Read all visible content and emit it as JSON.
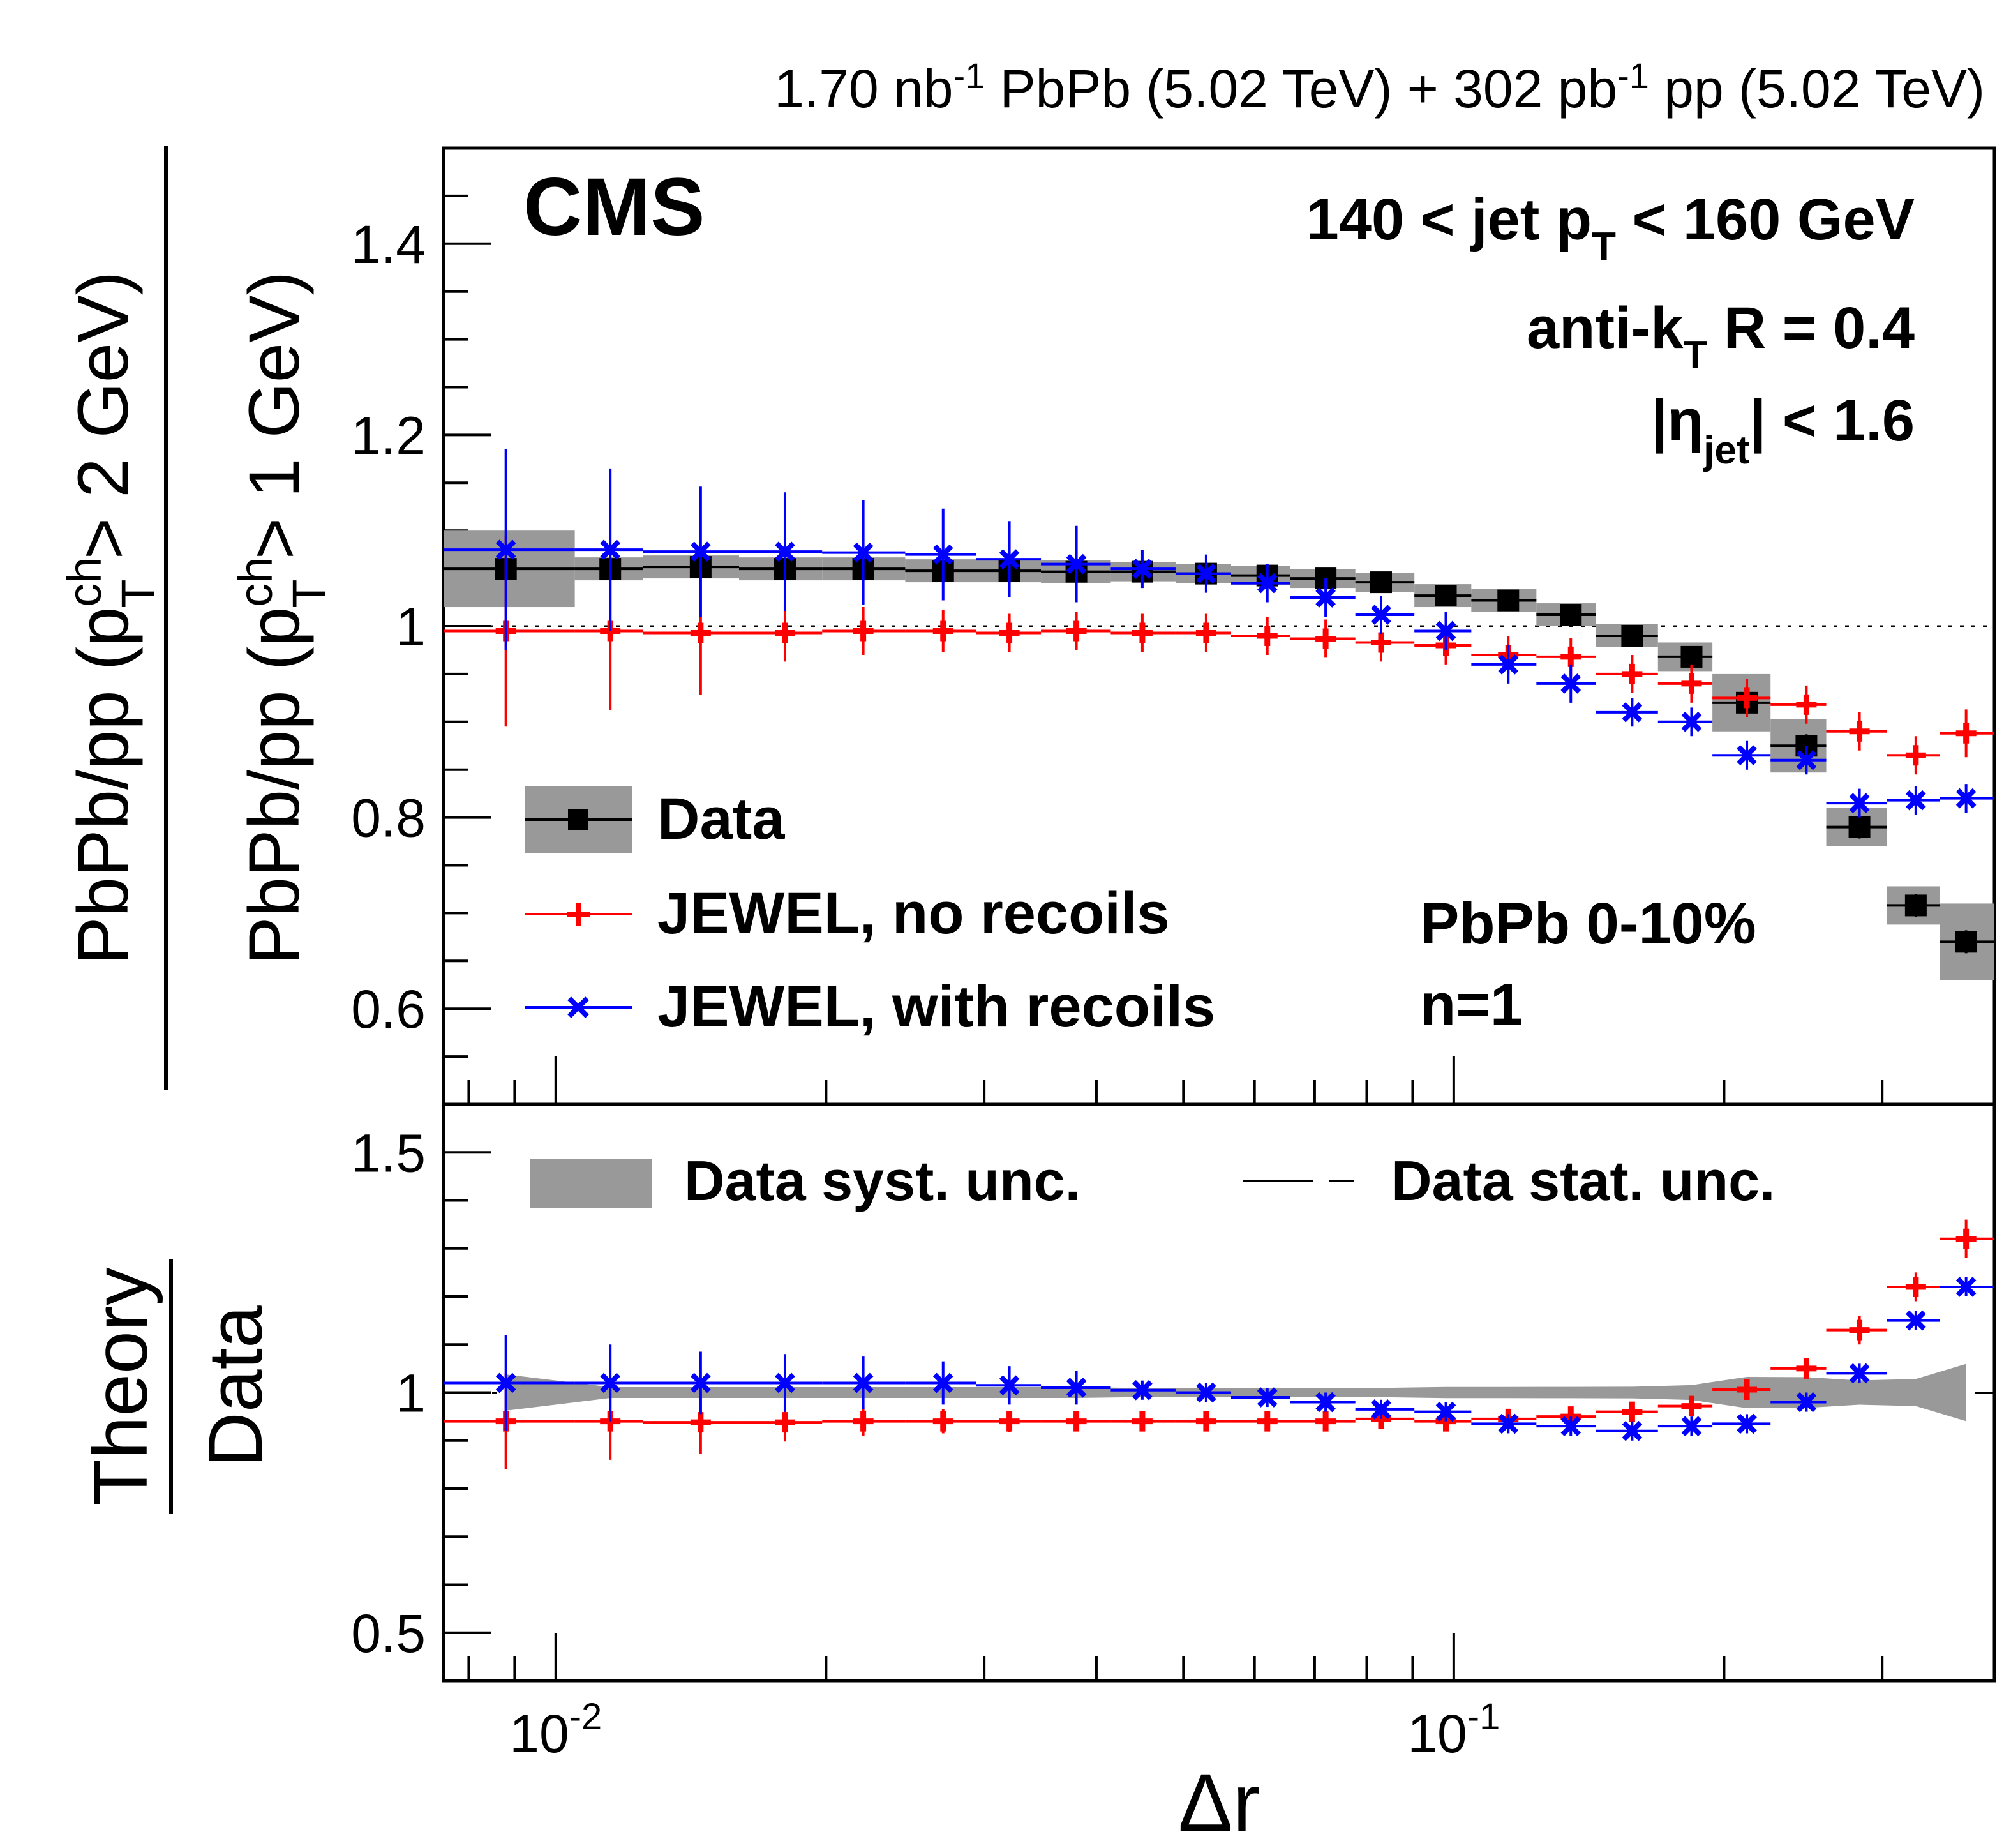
{
  "header": {
    "lumi": {
      "pbpb_value": "1.70 nb",
      "pbpb_exp": "-1",
      "pbpb_rest": " PbPb (5.02 TeV) + 302 pb",
      "pp_exp": "-1",
      "pp_rest": " pp (5.02 TeV)"
    },
    "experiment": "CMS"
  },
  "annotations": {
    "pt_range_pre": "140 < jet p",
    "pt_range_sub": "T",
    "pt_range_post": " < 160 GeV",
    "algo_pre": "anti-k",
    "algo_sub": "T",
    "algo_post": " R = 0.4",
    "eta_pre": "|η",
    "eta_sub": "jet",
    "eta_post": "| < 1.6",
    "centrality": "PbPb 0-10%",
    "n_label": "n=1"
  },
  "ylabel_top": {
    "numerator_pre": "PbPb/pp (p",
    "numerator_sup": "ch",
    "numerator_sub": "T",
    "numerator_post": " > 2 GeV)",
    "denominator_pre": "PbPb/pp (p",
    "denominator_sup": "ch",
    "denominator_sub": "T",
    "denominator_post": " > 1 GeV)"
  },
  "ylabel_bottom": {
    "numerator": "Theory",
    "denominator": "Data"
  },
  "xlabel": "Δr",
  "legend_top": [
    {
      "label": "Data",
      "color": "#000000",
      "marker": "square"
    },
    {
      "label": "JEWEL, no recoils",
      "color": "#ff0000",
      "marker": "plus"
    },
    {
      "label": "JEWEL, with recoils",
      "color": "#0000ff",
      "marker": "cross"
    }
  ],
  "legend_bottom": {
    "syst": "Data syst. unc.",
    "stat": "Data stat. unc."
  },
  "colors": {
    "data": "#000000",
    "no_recoils": "#ff0000",
    "with_recoils": "#0000ff",
    "band": "#999999"
  },
  "chart_data": [
    {
      "type": "scatter",
      "panel": "top",
      "xscale": "log",
      "xlim": [
        0.0075,
        0.4
      ],
      "ylim": [
        0.5,
        1.5
      ],
      "ticks_y": [
        "0.6",
        "0.8",
        "1",
        "1.2",
        "1.4"
      ],
      "ticks_x": [
        {
          "base": "10",
          "exp": "-2",
          "value": 0.01
        },
        {
          "base": "10",
          "exp": "-1",
          "value": 0.1
        }
      ],
      "reference_line": 1,
      "bin_edges": [
        0.0075,
        0.0105,
        0.0125,
        0.016,
        0.0198,
        0.0245,
        0.0294,
        0.0347,
        0.0415,
        0.049,
        0.0565,
        0.0657,
        0.0777,
        0.0904,
        0.1046,
        0.1236,
        0.1439,
        0.1688,
        0.1941,
        0.2253,
        0.2599,
        0.3035,
        0.3477,
        0.4
      ],
      "x": [
        0.0088,
        0.0115,
        0.0145,
        0.018,
        0.022,
        0.027,
        0.032,
        0.038,
        0.045,
        0.053,
        0.062,
        0.072,
        0.083,
        0.098,
        0.115,
        0.135,
        0.158,
        0.184,
        0.212,
        0.247,
        0.283,
        0.327,
        0.372
      ],
      "series": [
        {
          "name": "Data",
          "values": [
            1.06,
            1.06,
            1.062,
            1.06,
            1.06,
            1.058,
            1.058,
            1.057,
            1.057,
            1.055,
            1.053,
            1.05,
            1.046,
            1.032,
            1.027,
            1.012,
            0.99,
            0.968,
            0.92,
            0.875,
            0.79,
            0.708,
            0.67
          ],
          "errors": [
            0.01,
            0.01,
            0.01,
            0.01,
            0.01,
            0.01,
            0.008,
            0.008,
            0.008,
            0.008,
            0.008,
            0.008,
            0.008,
            0.008,
            0.008,
            0.008,
            0.008,
            0.008,
            0.01,
            0.012,
            0.012,
            0.012,
            0.012
          ],
          "syst": [
            0.04,
            0.012,
            0.012,
            0.012,
            0.012,
            0.012,
            0.012,
            0.012,
            0.01,
            0.01,
            0.01,
            0.01,
            0.01,
            0.012,
            0.012,
            0.012,
            0.012,
            0.015,
            0.03,
            0.028,
            0.02,
            0.02,
            0.04
          ]
        },
        {
          "name": "JEWEL, no recoils",
          "values": [
            0.995,
            0.995,
            0.993,
            0.993,
            0.995,
            0.995,
            0.993,
            0.995,
            0.993,
            0.993,
            0.99,
            0.987,
            0.983,
            0.98,
            0.97,
            0.968,
            0.95,
            0.94,
            0.925,
            0.918,
            0.89,
            0.865,
            0.888
          ],
          "errors": [
            0.1,
            0.083,
            0.065,
            0.03,
            0.025,
            0.022,
            0.02,
            0.02,
            0.02,
            0.02,
            0.02,
            0.02,
            0.02,
            0.02,
            0.02,
            0.02,
            0.02,
            0.02,
            0.02,
            0.02,
            0.02,
            0.02,
            0.025
          ]
        },
        {
          "name": "JEWEL, with recoils",
          "values": [
            1.08,
            1.08,
            1.078,
            1.078,
            1.077,
            1.075,
            1.07,
            1.065,
            1.06,
            1.055,
            1.045,
            1.03,
            1.012,
            0.995,
            0.96,
            0.94,
            0.91,
            0.9,
            0.865,
            0.86,
            0.815,
            0.818,
            0.82
          ],
          "errors": [
            0.105,
            0.085,
            0.068,
            0.062,
            0.055,
            0.048,
            0.04,
            0.04,
            0.02,
            0.02,
            0.02,
            0.02,
            0.02,
            0.02,
            0.02,
            0.02,
            0.015,
            0.015,
            0.015,
            0.015,
            0.015,
            0.015,
            0.015
          ]
        }
      ]
    },
    {
      "type": "scatter",
      "panel": "bottom",
      "xscale": "log",
      "xlim": [
        0.0075,
        0.4
      ],
      "ylim": [
        0.4,
        1.6
      ],
      "ticks_y": [
        "0.5",
        "1",
        "1.5"
      ],
      "reference_line": 1,
      "x": [
        0.0088,
        0.0115,
        0.0145,
        0.018,
        0.022,
        0.027,
        0.032,
        0.038,
        0.045,
        0.053,
        0.062,
        0.072,
        0.083,
        0.098,
        0.115,
        0.135,
        0.158,
        0.184,
        0.212,
        0.247,
        0.283,
        0.327,
        0.372
      ],
      "series": [
        {
          "name": "JEWEL, no recoils",
          "values": [
            0.94,
            0.94,
            0.938,
            0.938,
            0.94,
            0.94,
            0.94,
            0.94,
            0.94,
            0.94,
            0.94,
            0.94,
            0.945,
            0.94,
            0.945,
            0.95,
            0.96,
            0.972,
            1.006,
            1.05,
            1.13,
            1.22,
            1.32
          ],
          "errors": [
            0.1,
            0.08,
            0.065,
            0.04,
            0.03,
            0.025,
            0.022,
            0.02,
            0.02,
            0.02,
            0.02,
            0.02,
            0.02,
            0.02,
            0.02,
            0.02,
            0.02,
            0.02,
            0.02,
            0.02,
            0.03,
            0.03,
            0.04
          ]
        },
        {
          "name": "JEWEL, with recoils",
          "values": [
            1.02,
            1.02,
            1.02,
            1.02,
            1.02,
            1.02,
            1.015,
            1.01,
            1.005,
            1.0,
            0.99,
            0.98,
            0.965,
            0.96,
            0.935,
            0.93,
            0.92,
            0.93,
            0.935,
            0.98,
            1.04,
            1.15,
            1.22
          ],
          "errors": [
            0.1,
            0.08,
            0.065,
            0.06,
            0.055,
            0.045,
            0.04,
            0.035,
            0.02,
            0.02,
            0.02,
            0.02,
            0.02,
            0.02,
            0.02,
            0.02,
            0.02,
            0.02,
            0.02,
            0.02,
            0.02,
            0.02,
            0.02
          ]
        }
      ]
    }
  ]
}
